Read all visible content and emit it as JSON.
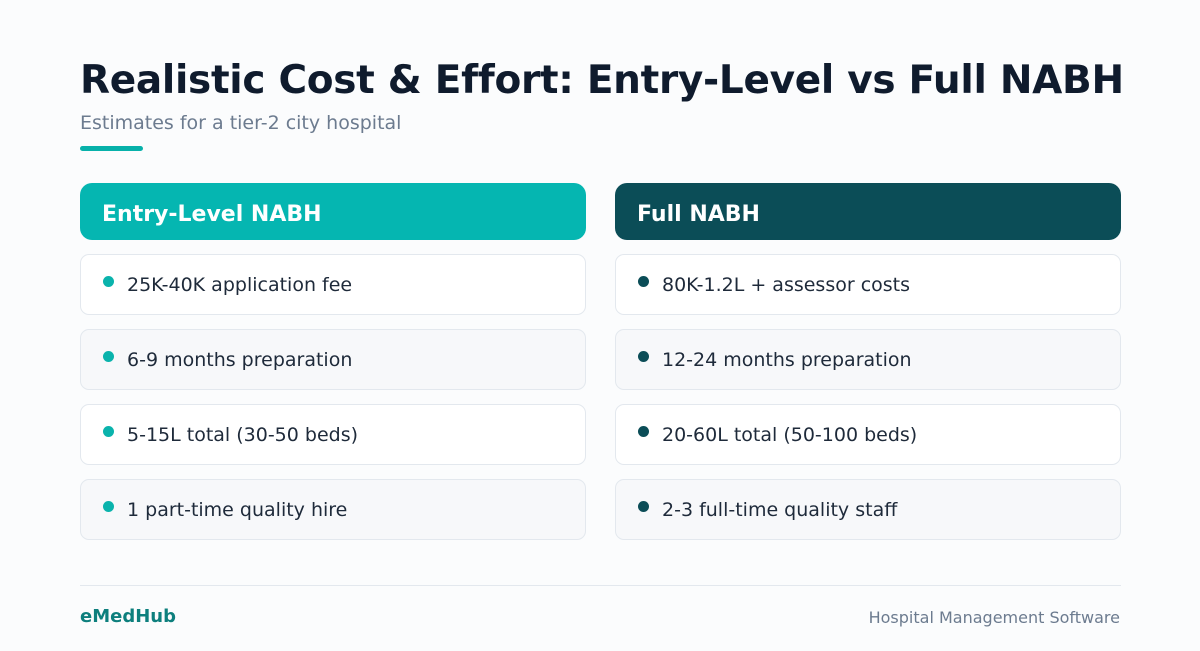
{
  "header": {
    "title": "Realistic Cost & Effort: Entry-Level vs Full NABH",
    "subtitle": "Estimates for a tier-2 city hospital"
  },
  "columns": {
    "entry": {
      "title": "Entry-Level NABH",
      "color": "#05b6b1",
      "items": [
        "25K-40K application fee",
        "6-9 months preparation",
        "5-15L total (30-50 beds)",
        "1 part-time quality hire"
      ]
    },
    "full": {
      "title": "Full NABH",
      "color": "#0b4d57",
      "items": [
        "80K-1.2L + assessor costs",
        "12-24 months preparation",
        "20-60L total (50-100 beds)",
        "2-3 full-time quality staff"
      ]
    }
  },
  "footer": {
    "brand": "eMedHub",
    "tagline": "Hospital Management Software"
  }
}
